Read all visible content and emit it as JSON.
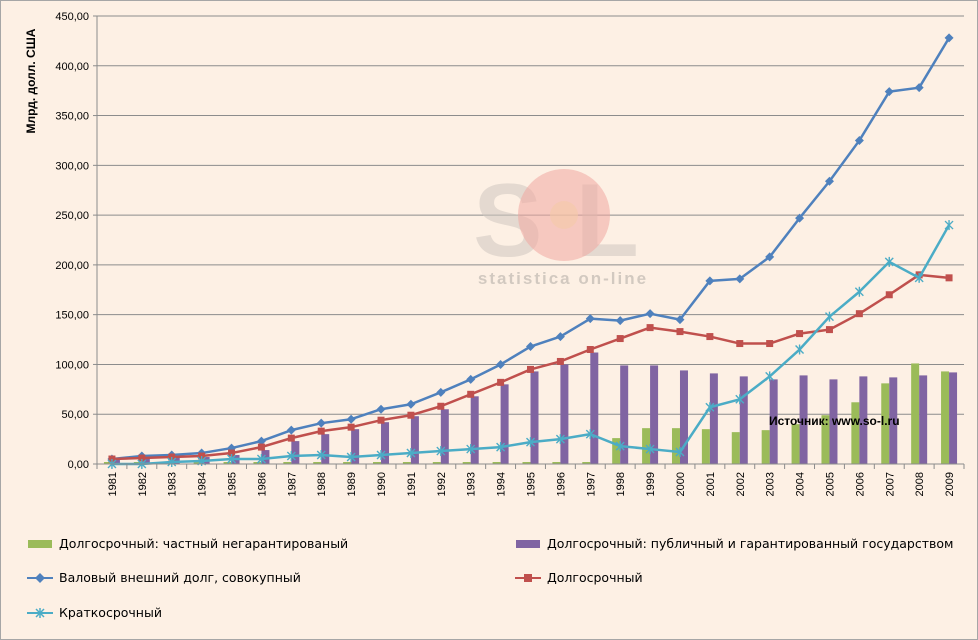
{
  "chart_data": {
    "type": "bar+line",
    "ylabel": "Млрд. долл. США",
    "ylim": [
      0,
      450
    ],
    "yticks": [
      "0,00",
      "50,00",
      "100,00",
      "150,00",
      "200,00",
      "250,00",
      "300,00",
      "350,00",
      "400,00",
      "450,00"
    ],
    "categories": [
      "1981",
      "1982",
      "1983",
      "1984",
      "1985",
      "1986",
      "1987",
      "1988",
      "1989",
      "1990",
      "1991",
      "1992",
      "1993",
      "1994",
      "1995",
      "1996",
      "1997",
      "1998",
      "1999",
      "2000",
      "2001",
      "2002",
      "2003",
      "2004",
      "2005",
      "2006",
      "2007",
      "2008",
      "2009"
    ],
    "series": [
      {
        "name": "Долгосрочный: частный негарантированый",
        "kind": "bar",
        "color": "#9bbb59",
        "values": [
          2,
          2,
          2,
          2,
          2,
          2,
          2,
          2,
          2,
          2,
          2,
          2,
          2,
          2,
          2,
          2,
          2,
          26,
          36,
          36,
          35,
          32,
          34,
          40,
          49,
          62,
          81,
          101,
          93
        ]
      },
      {
        "name": "Долгосрочный: публичный и гарантированный государством",
        "kind": "bar",
        "color": "#8064a2",
        "values": [
          4,
          5,
          6,
          7,
          9,
          14,
          23,
          30,
          35,
          42,
          48,
          55,
          68,
          80,
          93,
          100,
          112,
          99,
          99,
          94,
          91,
          88,
          85,
          89,
          85,
          88,
          87,
          89,
          92
        ]
      },
      {
        "name": "Валовый внешний долг, совокупный",
        "kind": "line",
        "color": "#4f81bd",
        "marker": "diamond",
        "values": [
          5,
          8,
          9,
          11,
          16,
          23,
          34,
          41,
          45,
          55,
          60,
          72,
          85,
          100,
          118,
          128,
          146,
          144,
          151,
          145,
          184,
          186,
          208,
          247,
          284,
          325,
          374,
          378,
          428
        ]
      },
      {
        "name": "Долгосрочный",
        "kind": "line",
        "color": "#c0504d",
        "marker": "square",
        "values": [
          5,
          6,
          7,
          8,
          11,
          17,
          26,
          33,
          37,
          44,
          49,
          58,
          70,
          82,
          95,
          103,
          115,
          126,
          137,
          133,
          128,
          121,
          121,
          131,
          135,
          151,
          170,
          190,
          187
        ]
      },
      {
        "name": "Краткосрочный",
        "kind": "line",
        "color": "#4bacc6",
        "marker": "star",
        "values": [
          0,
          0,
          2,
          3,
          5,
          5,
          8,
          9,
          7,
          9,
          11,
          13,
          15,
          17,
          22,
          25,
          30,
          18,
          15,
          12,
          57,
          65,
          88,
          115,
          148,
          173,
          203,
          187,
          240
        ]
      }
    ],
    "annotation": "Источник: www.so-l.ru"
  },
  "watermark": {
    "logo_text": "S   L",
    "tagline": "statistica on-line"
  },
  "legend_layout": [
    {
      "series": 0
    },
    {
      "series": 1
    },
    {
      "series": 2
    },
    {
      "series": 3
    },
    {
      "series": 4
    }
  ]
}
